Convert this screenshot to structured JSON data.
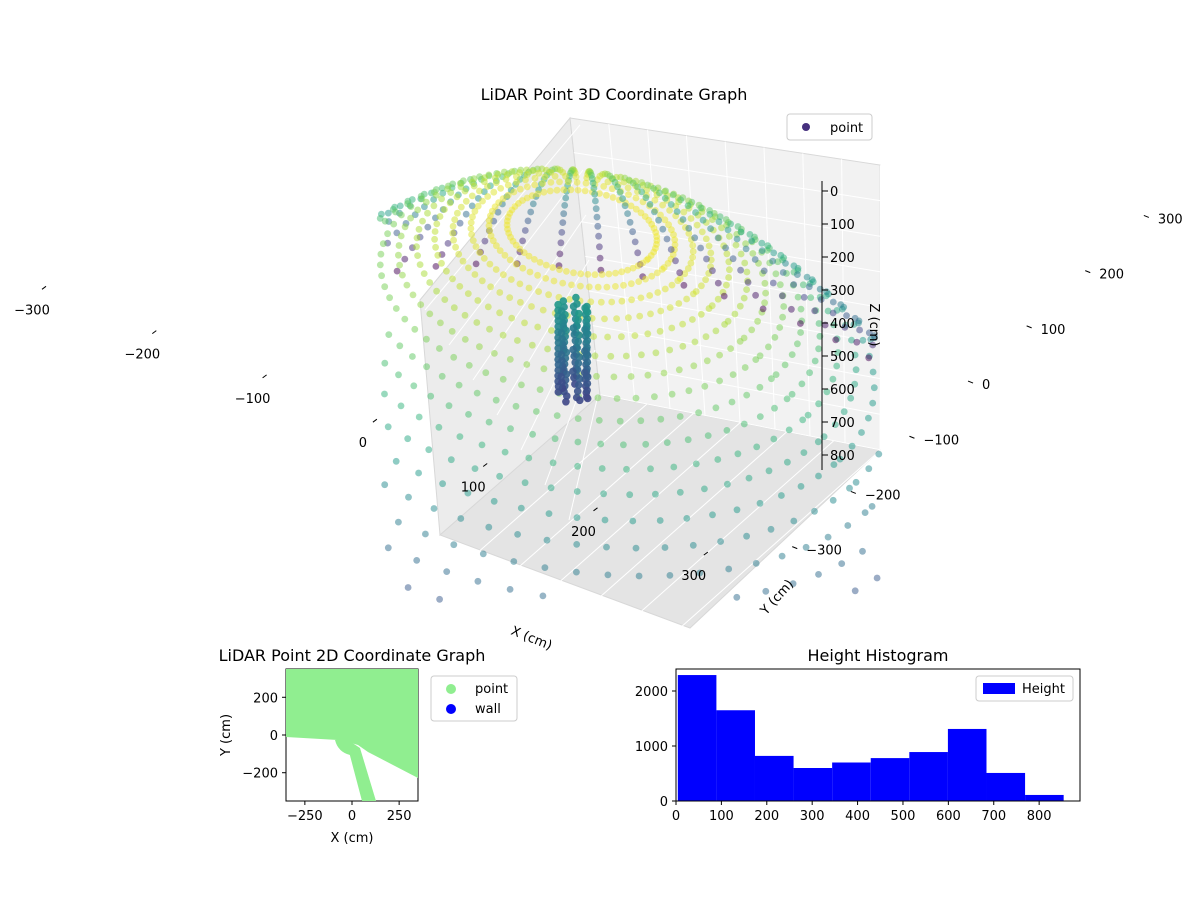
{
  "chart_data": [
    {
      "type": "scatter3d",
      "title": "LiDAR Point 3D Coordinate Graph",
      "xlabel": "X (cm)",
      "ylabel": "Y (cm)",
      "zlabel": "Z (cm)",
      "x_ticks": [
        -300,
        -200,
        -100,
        0,
        100,
        200,
        300
      ],
      "y_ticks": [
        -300,
        -200,
        -100,
        0,
        100,
        200,
        300
      ],
      "z_ticks": [
        0,
        100,
        200,
        300,
        400,
        500,
        600,
        700,
        800
      ],
      "xlim": [
        -350,
        350
      ],
      "ylim": [
        -350,
        350
      ],
      "zlim": [
        900,
        0
      ],
      "colormap": "viridis",
      "legend": {
        "entries": [
          "point"
        ],
        "placement": "top-right"
      },
      "legend_color": "#46307e"
    },
    {
      "type": "scatter",
      "title": "LiDAR Point 2D Coordinate Graph",
      "xlabel": "X (cm)",
      "ylabel": "Y (cm)",
      "x_ticks": [
        -250,
        0,
        250
      ],
      "y_ticks": [
        200,
        0,
        -200
      ],
      "xlim": [
        -350,
        350
      ],
      "ylim": [
        -350,
        350
      ],
      "series": [
        {
          "name": "point",
          "color": "#90ee90"
        },
        {
          "name": "wall",
          "color": "#0000ff"
        }
      ],
      "legend_placement": "outside-right"
    },
    {
      "type": "bar",
      "title": "Height Histogram",
      "x_ticks": [
        0,
        100,
        200,
        300,
        400,
        500,
        600,
        700,
        800
      ],
      "y_ticks": [
        0,
        1000,
        2000
      ],
      "xlim": [
        0,
        890
      ],
      "ylim": [
        0,
        2400
      ],
      "bin_width": 85,
      "bins": [
        {
          "x": 4,
          "value": 2290
        },
        {
          "x": 89,
          "value": 1650
        },
        {
          "x": 174,
          "value": 820
        },
        {
          "x": 259,
          "value": 600
        },
        {
          "x": 344,
          "value": 700
        },
        {
          "x": 429,
          "value": 780
        },
        {
          "x": 514,
          "value": 890
        },
        {
          "x": 599,
          "value": 1310
        },
        {
          "x": 684,
          "value": 510
        },
        {
          "x": 769,
          "value": 110
        }
      ],
      "color": "#0000ff",
      "legend": {
        "entries": [
          "Height"
        ],
        "placement": "top-right"
      }
    }
  ]
}
